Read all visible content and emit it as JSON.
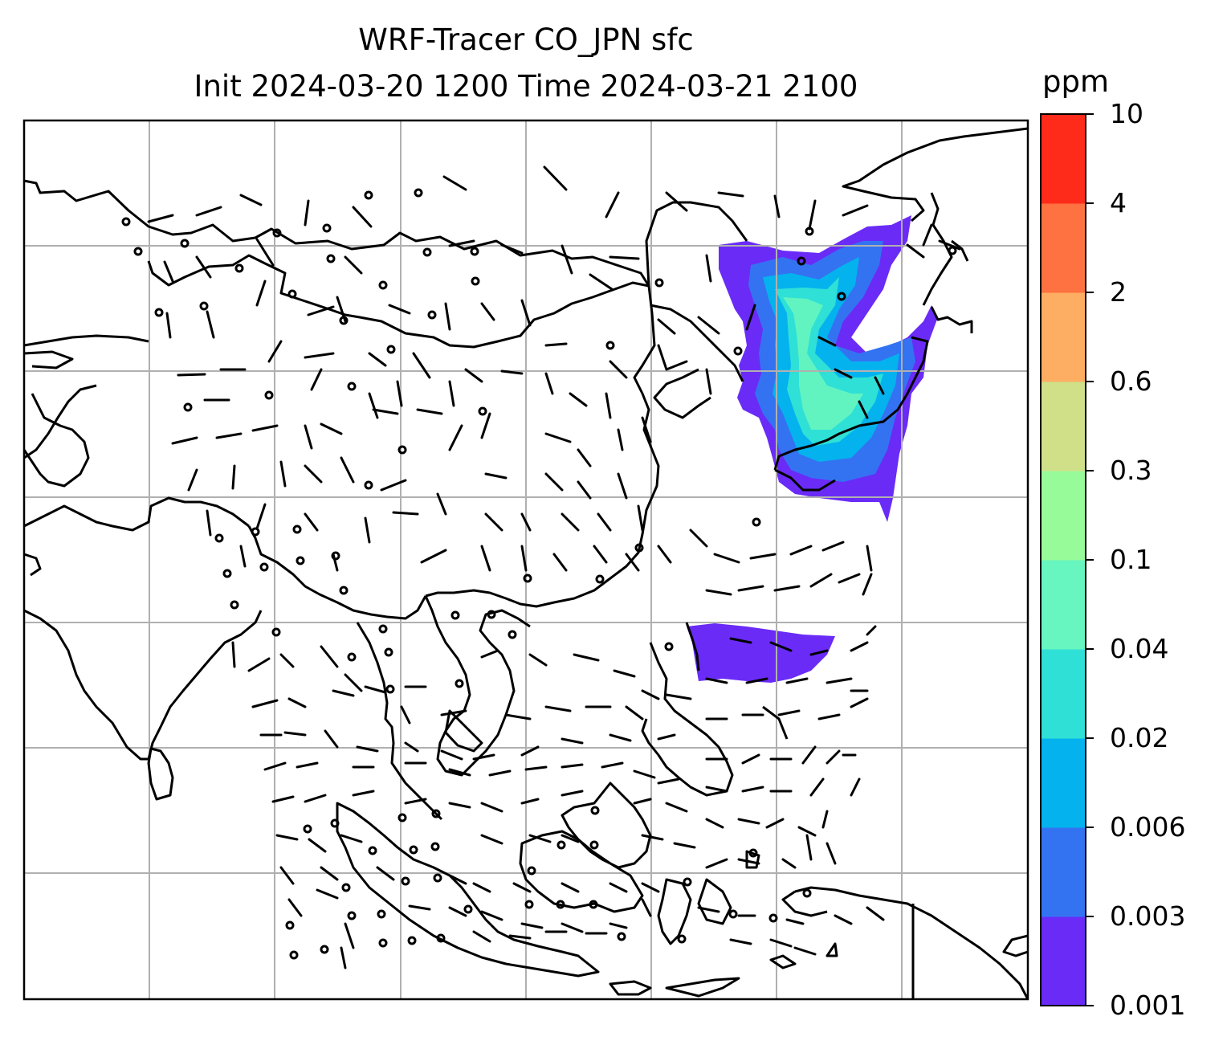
{
  "title": {
    "line1": "WRF-Tracer CO_JPN sfc",
    "line2": "Init 2024-03-20 1200 Time 2024-03-21 2100"
  },
  "colorbar": {
    "unit": "ppm",
    "levels": [
      "0.001",
      "0.003",
      "0.006",
      "0.02",
      "0.04",
      "0.1",
      "0.3",
      "0.6",
      "2",
      "4",
      "10"
    ],
    "colors": [
      "#6a2bf7",
      "#3373f2",
      "#04b3ed",
      "#2fe0d6",
      "#67f6bf",
      "#98fb9a",
      "#cfe089",
      "#feae62",
      "#fe7140",
      "#fe2a1a"
    ]
  },
  "map": {
    "field": "CO_JPN tracer concentration",
    "plume_colors": [
      "#6a2bf7",
      "#3373f2",
      "#04b3ed",
      "#2fe0d6",
      "#67f6bf"
    ],
    "gridline_color": "#b0b0b0",
    "coastline_color": "#000000",
    "wind_barb_color": "#000000"
  }
}
